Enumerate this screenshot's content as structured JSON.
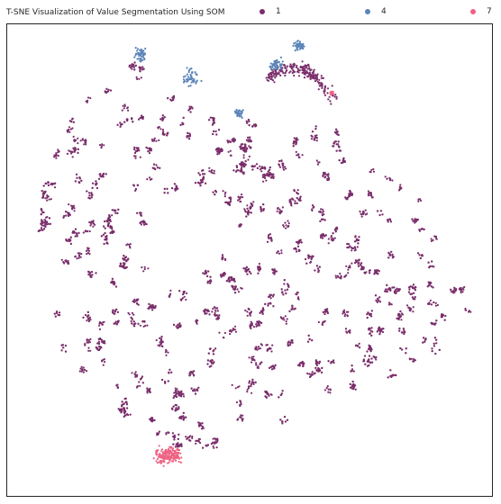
{
  "chart_data": {
    "type": "scatter",
    "title": "T-SNE Visualization of Value Segmentation Using SOM",
    "xlabel": "",
    "ylabel": "",
    "grid": false,
    "legend_position": "top",
    "series": [
      {
        "name": "1",
        "color": "#7a2e6b"
      },
      {
        "name": "4",
        "color": "#5b84b8"
      },
      {
        "name": "7",
        "color": "#ee6383"
      }
    ]
  }
}
